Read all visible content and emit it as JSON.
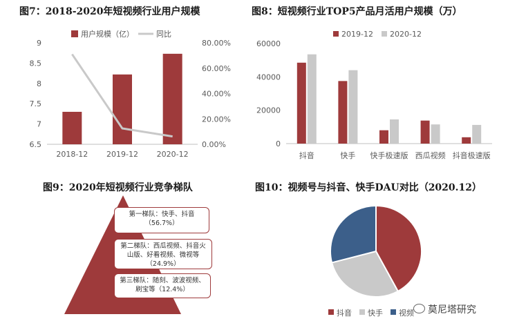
{
  "colors": {
    "red": "#9e3a3b",
    "gray": "#c9c9c9",
    "blue": "#3c5f8a",
    "line": "#c9c9c9"
  },
  "titles": {
    "fig7": "图7：2018-2020年短视频行业用户规模",
    "fig8": "图8：短视频行业TOP5产品月活用户规模（万）",
    "fig9": "图9：2020年短视频行业竞争梯队",
    "fig10": "图10：视频号与抖音、快手DAU对比（2020.12）"
  },
  "watermark": {
    "text": "莫尼塔研究",
    "icon": "wechat-icon"
  },
  "chart_data": [
    {
      "id": "fig7",
      "type": "bar+line",
      "categories": [
        "2018-12",
        "2019-12",
        "2020-12"
      ],
      "series": [
        {
          "name": "用户规模（亿）",
          "type": "bar",
          "axis": "left",
          "values": [
            7.3,
            8.22,
            8.73
          ]
        },
        {
          "name": "同比",
          "type": "line",
          "axis": "right",
          "values": [
            0.71,
            0.125,
            0.062
          ]
        }
      ],
      "ylim_left": [
        6.5,
        9
      ],
      "yticks_left": [
        "6.5",
        "7",
        "7.5",
        "8",
        "8.5",
        "9"
      ],
      "ylim_right": [
        0,
        0.8
      ],
      "yticks_right": [
        "0.00%",
        "20.00%",
        "40.00%",
        "60.00%",
        "80.00%"
      ],
      "legend": "top",
      "grid": false
    },
    {
      "id": "fig8",
      "type": "bar",
      "categories": [
        "抖音",
        "快手",
        "快手极速版",
        "西瓜视频",
        "抖音极速版"
      ],
      "series": [
        {
          "name": "2019-12",
          "values": [
            48500,
            37500,
            8000,
            13800,
            3800
          ]
        },
        {
          "name": "2020-12",
          "values": [
            53500,
            44000,
            14500,
            11500,
            11200
          ]
        }
      ],
      "ylim": [
        0,
        60000
      ],
      "yticks": [
        "0",
        "20000",
        "40000",
        "60000"
      ],
      "legend": "top-left",
      "grid": false
    },
    {
      "id": "fig9",
      "type": "pyramid",
      "tiers": [
        {
          "text": "第一梯队：快手、抖音（56.7%）"
        },
        {
          "text": "第二梯队：西瓜视频、抖音火山版、好看视频、微视等（24.9%）"
        },
        {
          "text": "第三梯队：随刻、波波视频、刷宝等（12.4%）"
        }
      ]
    },
    {
      "id": "fig10",
      "type": "pie",
      "slices": [
        {
          "name": "抖音",
          "value": 0.42
        },
        {
          "name": "快手",
          "value": 0.29
        },
        {
          "name": "视频号",
          "value": 0.29
        }
      ],
      "legend": "bottom",
      "legend_visible": [
        "抖音",
        "快手",
        "视频"
      ]
    }
  ]
}
